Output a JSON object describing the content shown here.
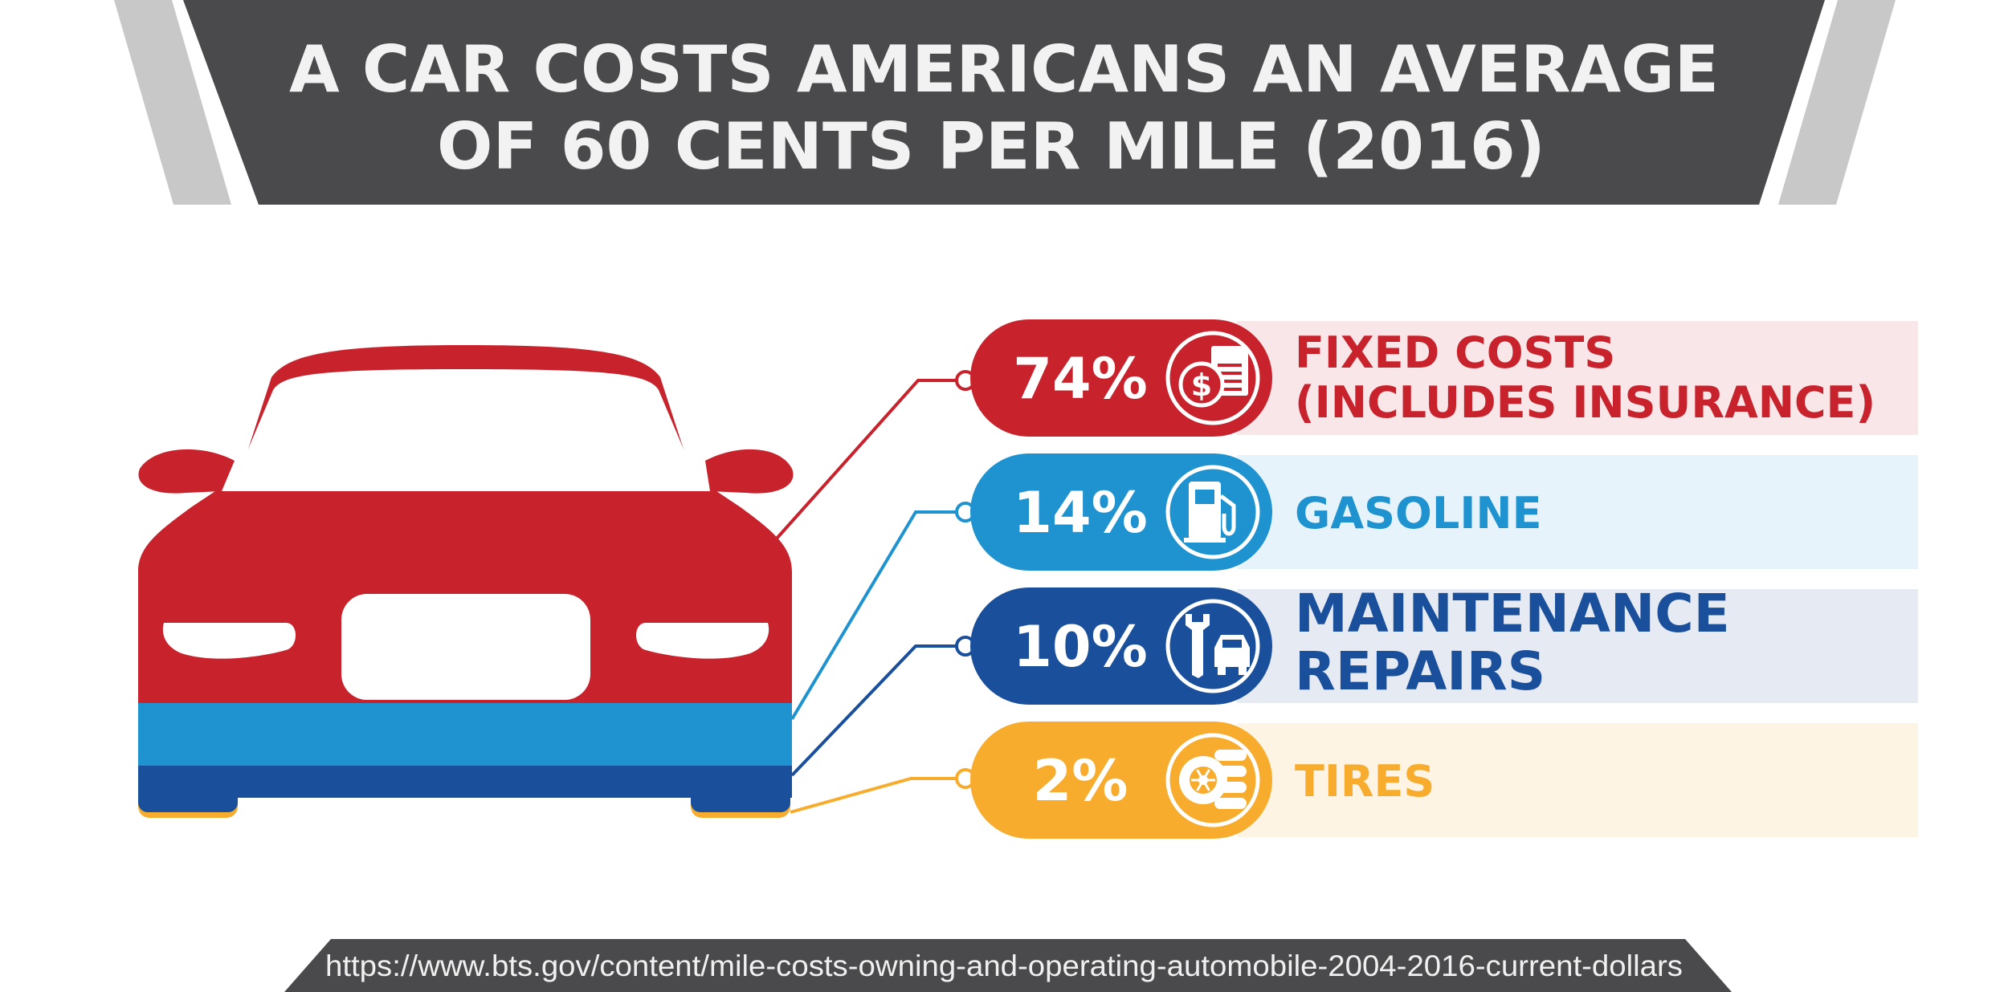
{
  "header": {
    "title_line1": "A CAR COSTS AMERICANS AN AVERAGE",
    "title_line2": "OF 60 CENTS PER MILE (2016)"
  },
  "footer": {
    "source_url": "https://www.bts.gov/content/mile-costs-owning-and-operating-automobile-2004-2016-current-dollars"
  },
  "colors": {
    "header_bg": "#4a4a4c",
    "header_stripe": "#c8c8c8",
    "fixed": "#c8232c",
    "gasoline": "#1e93d0",
    "maintenance": "#1a4f9c",
    "tires": "#f7ac2d"
  },
  "chart_data": {
    "type": "table",
    "unit": "%",
    "categories": [
      "FIXED COSTS (INCLUDES INSURANCE)",
      "GASOLINE",
      "MAINTENANCE REPAIRS",
      "TIRES"
    ],
    "values": [
      74,
      14,
      10,
      2
    ],
    "items": [
      {
        "percent_label": "74%",
        "label_lines": [
          "FIXED COSTS",
          "(INCLUDES INSURANCE)"
        ],
        "icon": "insurance-policy-icon",
        "color": "#c8232c",
        "band_color": "#f9e6e8",
        "value": 74
      },
      {
        "percent_label": "14%",
        "label_lines": [
          "GASOLINE"
        ],
        "icon": "gas-pump-icon",
        "color": "#1e93d0",
        "band_color": "#e6f3fa",
        "value": 14
      },
      {
        "percent_label": "10%",
        "label_lines": [
          "MAINTENANCE",
          "REPAIRS"
        ],
        "icon": "wrench-car-icon",
        "color": "#1a4f9c",
        "band_color": "#e5eaf3",
        "value": 10
      },
      {
        "percent_label": "2%",
        "label_lines": [
          "TIRES"
        ],
        "icon": "tires-icon",
        "color": "#f7ac2d",
        "band_color": "#fef4e4",
        "value": 2
      }
    ]
  }
}
